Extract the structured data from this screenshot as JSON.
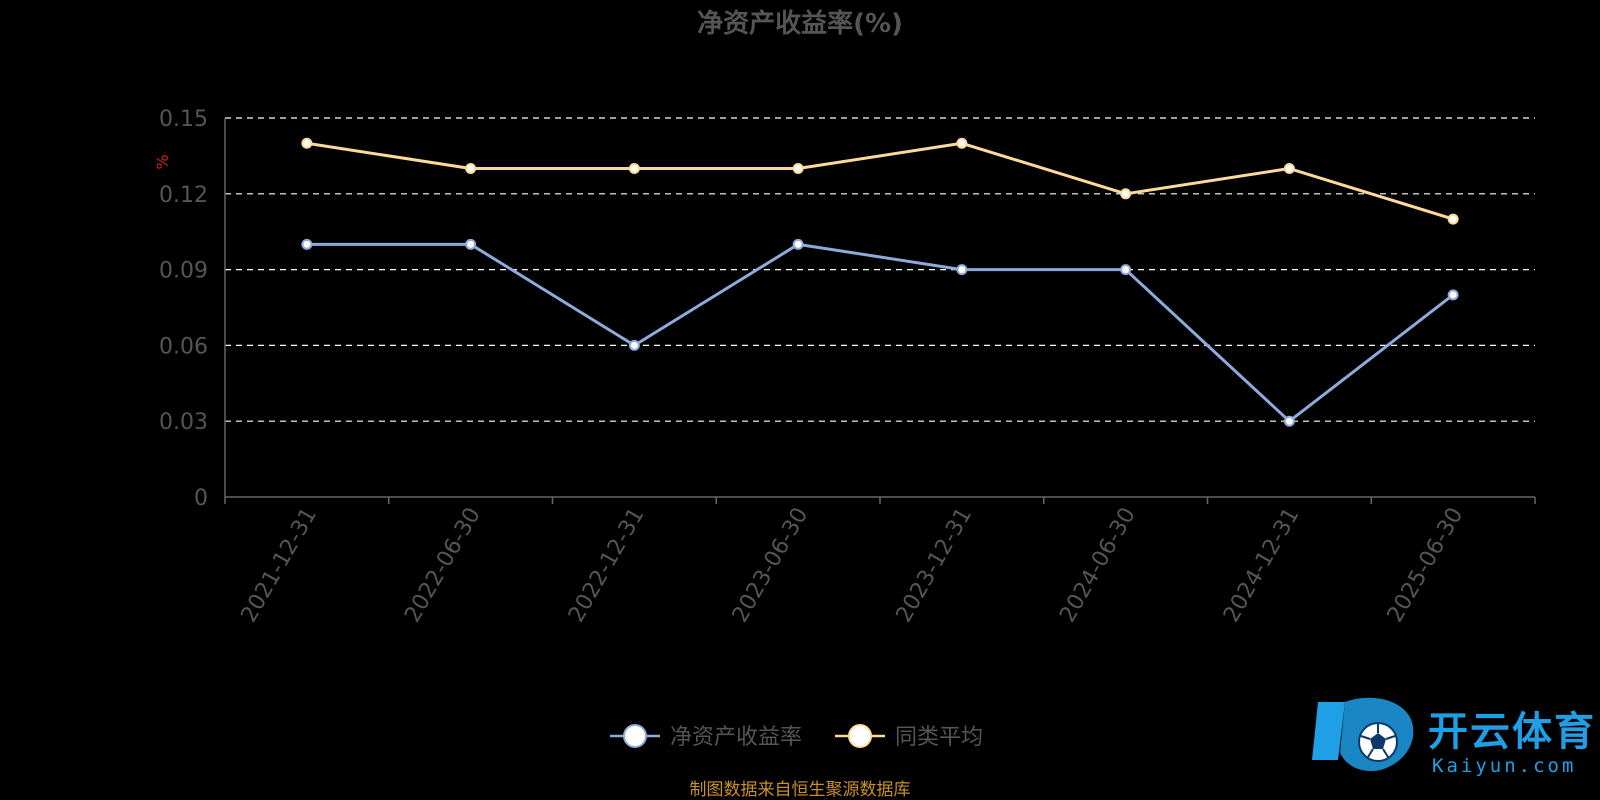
{
  "chart_data": {
    "type": "line",
    "title": "净资产收益率(%)",
    "ylabel": "%",
    "ylim": [
      0,
      0.15
    ],
    "yticks": [
      "0",
      "0.03",
      "0.06",
      "0.09",
      "0.12",
      "0.15"
    ],
    "categories": [
      "2021-12-31",
      "2022-06-30",
      "2022-12-31",
      "2023-06-30",
      "2023-12-31",
      "2024-06-30",
      "2024-12-31",
      "2025-06-30"
    ],
    "series": [
      {
        "name": "净资产收益率",
        "color": "#8eaadb",
        "values": [
          0.1,
          0.1,
          0.06,
          0.1,
          0.09,
          0.09,
          0.03,
          0.08
        ]
      },
      {
        "name": "同类平均",
        "color": "#ffd99a",
        "values": [
          0.14,
          0.13,
          0.13,
          0.13,
          0.14,
          0.12,
          0.13,
          0.11
        ]
      }
    ],
    "grid": true,
    "legend_position": "bottom-center"
  },
  "source_note": "制图数据来自恒生聚源数据库",
  "watermark": {
    "brand": "开云体育",
    "domain": "Kaiyun.com",
    "icon": "soccer-ball-logo"
  }
}
